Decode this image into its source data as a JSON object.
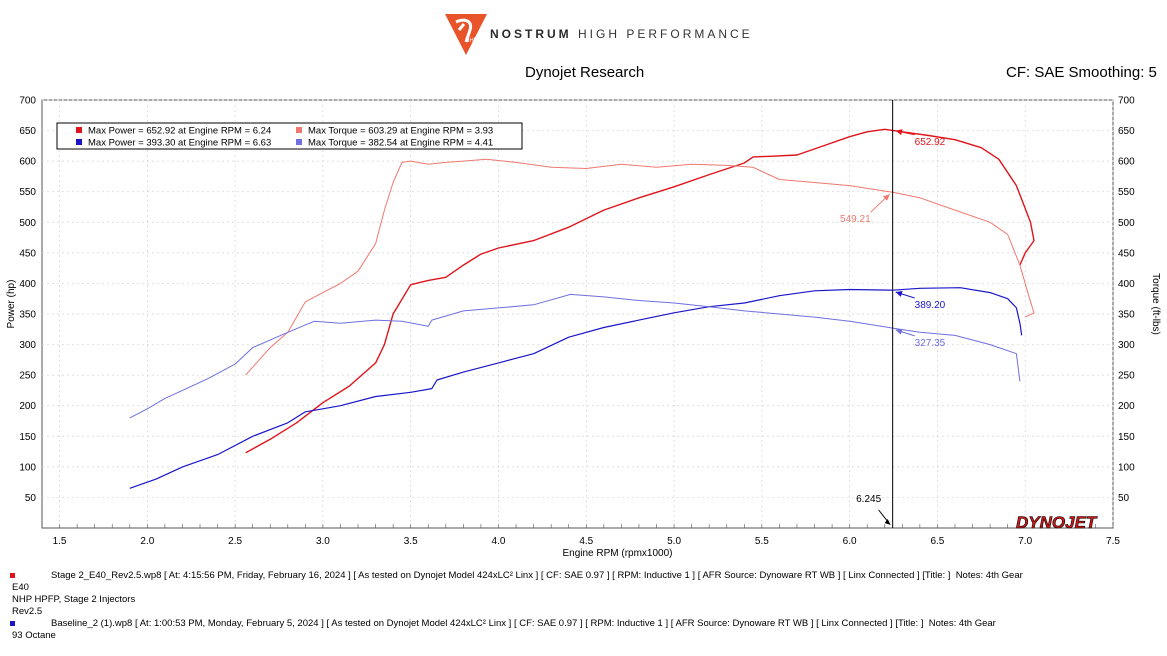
{
  "header": {
    "logo_text_bold": "NOSTRUM",
    "logo_text_thin": "HIGH PERFORMANCE",
    "logo_badge": "NHP",
    "title": "Dynojet Research",
    "correction": "CF: SAE Smoothing: 5"
  },
  "colors": {
    "power_1": "#e0141b",
    "torque_1": "#f0786f",
    "power_2": "#1a16c8",
    "torque_2": "#6f6fe0",
    "cursor": "#000000",
    "brand": "#e8532a"
  },
  "legend": [
    {
      "color": "#e0141b",
      "text": "Max Power = 652.92 at Engine RPM = 6.24"
    },
    {
      "color": "#f0786f",
      "text": "Max Torque = 603.29 at Engine RPM = 3.93"
    },
    {
      "color": "#1a16c8",
      "text": "Max Power = 393.30 at Engine RPM = 6.63"
    },
    {
      "color": "#6f6fe0",
      "text": "Max Torque = 382.54 at Engine RPM = 4.41"
    }
  ],
  "cursor": {
    "rpm": 6.245,
    "label": "6.245"
  },
  "chart_data": {
    "type": "line",
    "xlabel": "Engine RPM (rpmx1000)",
    "ylabel": "Power (hp)",
    "y2label": "Torque (ft-lbs)",
    "xlim": [
      1.4,
      7.5
    ],
    "ylim": [
      0,
      700
    ],
    "y2lim": [
      0,
      700
    ],
    "xticks": [
      "1.5",
      "2.0",
      "2.5",
      "3.0",
      "3.5",
      "4.0",
      "4.5",
      "5.0",
      "5.5",
      "6.0",
      "6.5",
      "7.0",
      "7.5"
    ],
    "yticks": [
      "50",
      "100",
      "150",
      "200",
      "250",
      "300",
      "350",
      "400",
      "450",
      "500",
      "550",
      "600",
      "650",
      "700"
    ],
    "grid": true,
    "legend_position": "top-left",
    "series": [
      {
        "name": "Max Power = 652.92 at Engine RPM = 6.24",
        "color": "#e0141b",
        "width": 1.4,
        "points": [
          [
            2.56,
            123
          ],
          [
            2.7,
            145
          ],
          [
            2.85,
            172
          ],
          [
            3.0,
            205
          ],
          [
            3.15,
            232
          ],
          [
            3.3,
            270
          ],
          [
            3.35,
            300
          ],
          [
            3.4,
            350
          ],
          [
            3.5,
            398
          ],
          [
            3.6,
            405
          ],
          [
            3.7,
            410
          ],
          [
            3.8,
            430
          ],
          [
            3.9,
            448
          ],
          [
            4.0,
            458
          ],
          [
            4.2,
            470
          ],
          [
            4.4,
            492
          ],
          [
            4.6,
            520
          ],
          [
            4.8,
            540
          ],
          [
            5.0,
            558
          ],
          [
            5.2,
            578
          ],
          [
            5.4,
            597
          ],
          [
            5.45,
            607
          ],
          [
            5.55,
            608
          ],
          [
            5.7,
            610
          ],
          [
            5.85,
            625
          ],
          [
            6.0,
            640
          ],
          [
            6.1,
            648
          ],
          [
            6.2,
            652
          ],
          [
            6.3,
            648
          ],
          [
            6.45,
            642
          ],
          [
            6.6,
            635
          ],
          [
            6.75,
            622
          ],
          [
            6.85,
            603
          ],
          [
            6.95,
            560
          ],
          [
            7.03,
            500
          ],
          [
            7.05,
            470
          ],
          [
            7.0,
            450
          ],
          [
            6.97,
            430
          ]
        ]
      },
      {
        "name": "Max Torque = 603.29 at Engine RPM = 3.93",
        "color": "#f0786f",
        "width": 1,
        "points": [
          [
            2.56,
            250
          ],
          [
            2.7,
            295
          ],
          [
            2.8,
            320
          ],
          [
            2.9,
            370
          ],
          [
            3.0,
            385
          ],
          [
            3.1,
            400
          ],
          [
            3.2,
            420
          ],
          [
            3.3,
            465
          ],
          [
            3.35,
            520
          ],
          [
            3.4,
            565
          ],
          [
            3.45,
            598
          ],
          [
            3.5,
            600
          ],
          [
            3.6,
            595
          ],
          [
            3.7,
            598
          ],
          [
            3.8,
            600
          ],
          [
            3.93,
            603
          ],
          [
            4.1,
            598
          ],
          [
            4.3,
            590
          ],
          [
            4.5,
            588
          ],
          [
            4.7,
            595
          ],
          [
            4.9,
            590
          ],
          [
            5.1,
            595
          ],
          [
            5.3,
            593
          ],
          [
            5.45,
            590
          ],
          [
            5.6,
            570
          ],
          [
            5.8,
            565
          ],
          [
            6.0,
            560
          ],
          [
            6.245,
            549
          ],
          [
            6.4,
            540
          ],
          [
            6.6,
            520
          ],
          [
            6.8,
            500
          ],
          [
            6.9,
            480
          ],
          [
            6.97,
            430
          ],
          [
            7.02,
            380
          ],
          [
            7.05,
            352
          ],
          [
            7.0,
            345
          ]
        ]
      },
      {
        "name": "Max Power = 393.30 at Engine RPM = 6.63",
        "color": "#1a16c8",
        "width": 1.2,
        "points": [
          [
            1.9,
            65
          ],
          [
            2.05,
            80
          ],
          [
            2.2,
            100
          ],
          [
            2.4,
            120
          ],
          [
            2.6,
            150
          ],
          [
            2.8,
            172
          ],
          [
            2.9,
            190
          ],
          [
            3.0,
            195
          ],
          [
            3.1,
            200
          ],
          [
            3.3,
            215
          ],
          [
            3.5,
            222
          ],
          [
            3.62,
            228
          ],
          [
            3.65,
            242
          ],
          [
            3.8,
            255
          ],
          [
            4.0,
            270
          ],
          [
            4.2,
            285
          ],
          [
            4.4,
            312
          ],
          [
            4.6,
            328
          ],
          [
            4.8,
            340
          ],
          [
            5.0,
            352
          ],
          [
            5.2,
            362
          ],
          [
            5.4,
            368
          ],
          [
            5.6,
            380
          ],
          [
            5.8,
            388
          ],
          [
            6.0,
            390
          ],
          [
            6.245,
            389
          ],
          [
            6.4,
            392
          ],
          [
            6.63,
            393
          ],
          [
            6.8,
            385
          ],
          [
            6.9,
            375
          ],
          [
            6.95,
            360
          ],
          [
            6.97,
            335
          ],
          [
            6.98,
            315
          ]
        ]
      },
      {
        "name": "Max Torque = 382.54 at Engine RPM = 4.41",
        "color": "#6f6fe0",
        "width": 1,
        "points": [
          [
            1.9,
            180
          ],
          [
            2.0,
            195
          ],
          [
            2.1,
            212
          ],
          [
            2.2,
            225
          ],
          [
            2.35,
            245
          ],
          [
            2.5,
            268
          ],
          [
            2.6,
            295
          ],
          [
            2.8,
            320
          ],
          [
            2.95,
            338
          ],
          [
            3.1,
            335
          ],
          [
            3.3,
            340
          ],
          [
            3.45,
            338
          ],
          [
            3.6,
            330
          ],
          [
            3.62,
            340
          ],
          [
            3.8,
            355
          ],
          [
            4.0,
            360
          ],
          [
            4.2,
            365
          ],
          [
            4.41,
            382
          ],
          [
            4.6,
            378
          ],
          [
            4.8,
            372
          ],
          [
            5.0,
            368
          ],
          [
            5.2,
            362
          ],
          [
            5.4,
            355
          ],
          [
            5.6,
            350
          ],
          [
            5.8,
            345
          ],
          [
            6.0,
            338
          ],
          [
            6.245,
            327
          ],
          [
            6.4,
            320
          ],
          [
            6.6,
            315
          ],
          [
            6.8,
            300
          ],
          [
            6.95,
            285
          ],
          [
            6.97,
            240
          ]
        ]
      }
    ],
    "annotations": [
      {
        "text": "652.92",
        "x": 6.245,
        "y": 652.92,
        "color": "#e0141b"
      },
      {
        "text": "549.21",
        "x": 6.245,
        "y": 549.21,
        "color": "#f0786f"
      },
      {
        "text": "389.20",
        "x": 6.245,
        "y": 389.2,
        "color": "#1a16c8"
      },
      {
        "text": "327.35",
        "x": 6.245,
        "y": 327.35,
        "color": "#6f6fe0"
      }
    ]
  },
  "watermark": "DYNOJET",
  "runs": [
    {
      "color": "#e0141b",
      "line1": "Stage 2_E40_Rev2.5.wp8 [ At: 4:15:56 PM, Friday, February 16, 2024 ] [ As tested on Dynojet Model 424xLC² Linx ] [ CF: SAE 0.97 ] [ RPM: Inductive 1 ] [ AFR Source: Dynoware RT WB ] [ Linx Connected ] [Title: ]  Notes: 4th Gear",
      "notes": [
        "E40",
        "NHP HPFP, Stage 2 Injectors",
        "Rev2.5"
      ]
    },
    {
      "color": "#1a16c8",
      "line1": "Baseline_2 (1).wp8 [ At: 1:00:53 PM, Monday, February 5, 2024 ] [ As tested on Dynojet Model 424xLC² Linx ] [ CF: SAE 0.97 ] [ RPM: Inductive 1 ] [ AFR Source: Dynoware RT WB ] [ Linx Connected ] [Title: ]  Notes: 4th Gear",
      "notes": [
        "93 Octane"
      ]
    }
  ]
}
